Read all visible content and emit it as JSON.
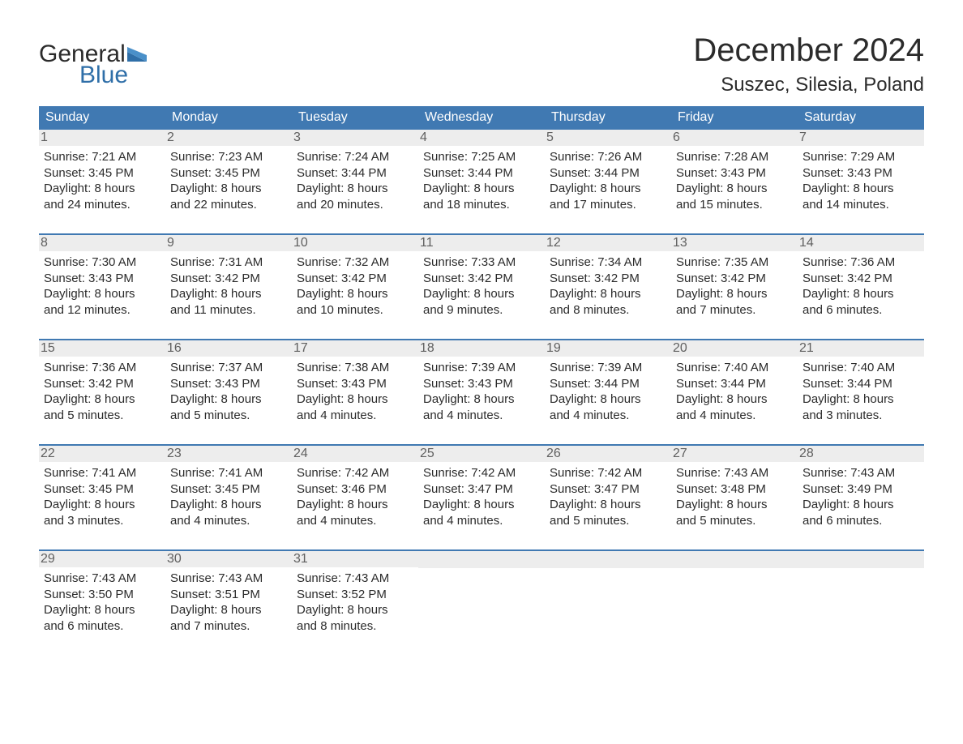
{
  "brand": {
    "top": "General",
    "bottom": "Blue",
    "color_accent": "#2f6fa8"
  },
  "title": "December 2024",
  "location": "Suszec, Silesia, Poland",
  "colors": {
    "header_bg": "#4079b2",
    "header_fg": "#ffffff",
    "week_border": "#4079b2",
    "daynum_band_bg": "#ededed",
    "daynum_fg": "#606060",
    "body_text": "#2b2b2b",
    "page_bg": "#ffffff"
  },
  "typography": {
    "title_fontsize": 40,
    "location_fontsize": 24,
    "dow_fontsize": 16,
    "daynum_fontsize": 16,
    "body_fontsize": 15
  },
  "dow": [
    "Sunday",
    "Monday",
    "Tuesday",
    "Wednesday",
    "Thursday",
    "Friday",
    "Saturday"
  ],
  "weeks": [
    [
      {
        "n": "1",
        "sunrise": "Sunrise: 7:21 AM",
        "sunset": "Sunset: 3:45 PM",
        "d1": "Daylight: 8 hours",
        "d2": "and 24 minutes."
      },
      {
        "n": "2",
        "sunrise": "Sunrise: 7:23 AM",
        "sunset": "Sunset: 3:45 PM",
        "d1": "Daylight: 8 hours",
        "d2": "and 22 minutes."
      },
      {
        "n": "3",
        "sunrise": "Sunrise: 7:24 AM",
        "sunset": "Sunset: 3:44 PM",
        "d1": "Daylight: 8 hours",
        "d2": "and 20 minutes."
      },
      {
        "n": "4",
        "sunrise": "Sunrise: 7:25 AM",
        "sunset": "Sunset: 3:44 PM",
        "d1": "Daylight: 8 hours",
        "d2": "and 18 minutes."
      },
      {
        "n": "5",
        "sunrise": "Sunrise: 7:26 AM",
        "sunset": "Sunset: 3:44 PM",
        "d1": "Daylight: 8 hours",
        "d2": "and 17 minutes."
      },
      {
        "n": "6",
        "sunrise": "Sunrise: 7:28 AM",
        "sunset": "Sunset: 3:43 PM",
        "d1": "Daylight: 8 hours",
        "d2": "and 15 minutes."
      },
      {
        "n": "7",
        "sunrise": "Sunrise: 7:29 AM",
        "sunset": "Sunset: 3:43 PM",
        "d1": "Daylight: 8 hours",
        "d2": "and 14 minutes."
      }
    ],
    [
      {
        "n": "8",
        "sunrise": "Sunrise: 7:30 AM",
        "sunset": "Sunset: 3:43 PM",
        "d1": "Daylight: 8 hours",
        "d2": "and 12 minutes."
      },
      {
        "n": "9",
        "sunrise": "Sunrise: 7:31 AM",
        "sunset": "Sunset: 3:42 PM",
        "d1": "Daylight: 8 hours",
        "d2": "and 11 minutes."
      },
      {
        "n": "10",
        "sunrise": "Sunrise: 7:32 AM",
        "sunset": "Sunset: 3:42 PM",
        "d1": "Daylight: 8 hours",
        "d2": "and 10 minutes."
      },
      {
        "n": "11",
        "sunrise": "Sunrise: 7:33 AM",
        "sunset": "Sunset: 3:42 PM",
        "d1": "Daylight: 8 hours",
        "d2": "and 9 minutes."
      },
      {
        "n": "12",
        "sunrise": "Sunrise: 7:34 AM",
        "sunset": "Sunset: 3:42 PM",
        "d1": "Daylight: 8 hours",
        "d2": "and 8 minutes."
      },
      {
        "n": "13",
        "sunrise": "Sunrise: 7:35 AM",
        "sunset": "Sunset: 3:42 PM",
        "d1": "Daylight: 8 hours",
        "d2": "and 7 minutes."
      },
      {
        "n": "14",
        "sunrise": "Sunrise: 7:36 AM",
        "sunset": "Sunset: 3:42 PM",
        "d1": "Daylight: 8 hours",
        "d2": "and 6 minutes."
      }
    ],
    [
      {
        "n": "15",
        "sunrise": "Sunrise: 7:36 AM",
        "sunset": "Sunset: 3:42 PM",
        "d1": "Daylight: 8 hours",
        "d2": "and 5 minutes."
      },
      {
        "n": "16",
        "sunrise": "Sunrise: 7:37 AM",
        "sunset": "Sunset: 3:43 PM",
        "d1": "Daylight: 8 hours",
        "d2": "and 5 minutes."
      },
      {
        "n": "17",
        "sunrise": "Sunrise: 7:38 AM",
        "sunset": "Sunset: 3:43 PM",
        "d1": "Daylight: 8 hours",
        "d2": "and 4 minutes."
      },
      {
        "n": "18",
        "sunrise": "Sunrise: 7:39 AM",
        "sunset": "Sunset: 3:43 PM",
        "d1": "Daylight: 8 hours",
        "d2": "and 4 minutes."
      },
      {
        "n": "19",
        "sunrise": "Sunrise: 7:39 AM",
        "sunset": "Sunset: 3:44 PM",
        "d1": "Daylight: 8 hours",
        "d2": "and 4 minutes."
      },
      {
        "n": "20",
        "sunrise": "Sunrise: 7:40 AM",
        "sunset": "Sunset: 3:44 PM",
        "d1": "Daylight: 8 hours",
        "d2": "and 4 minutes."
      },
      {
        "n": "21",
        "sunrise": "Sunrise: 7:40 AM",
        "sunset": "Sunset: 3:44 PM",
        "d1": "Daylight: 8 hours",
        "d2": "and 3 minutes."
      }
    ],
    [
      {
        "n": "22",
        "sunrise": "Sunrise: 7:41 AM",
        "sunset": "Sunset: 3:45 PM",
        "d1": "Daylight: 8 hours",
        "d2": "and 3 minutes."
      },
      {
        "n": "23",
        "sunrise": "Sunrise: 7:41 AM",
        "sunset": "Sunset: 3:45 PM",
        "d1": "Daylight: 8 hours",
        "d2": "and 4 minutes."
      },
      {
        "n": "24",
        "sunrise": "Sunrise: 7:42 AM",
        "sunset": "Sunset: 3:46 PM",
        "d1": "Daylight: 8 hours",
        "d2": "and 4 minutes."
      },
      {
        "n": "25",
        "sunrise": "Sunrise: 7:42 AM",
        "sunset": "Sunset: 3:47 PM",
        "d1": "Daylight: 8 hours",
        "d2": "and 4 minutes."
      },
      {
        "n": "26",
        "sunrise": "Sunrise: 7:42 AM",
        "sunset": "Sunset: 3:47 PM",
        "d1": "Daylight: 8 hours",
        "d2": "and 5 minutes."
      },
      {
        "n": "27",
        "sunrise": "Sunrise: 7:43 AM",
        "sunset": "Sunset: 3:48 PM",
        "d1": "Daylight: 8 hours",
        "d2": "and 5 minutes."
      },
      {
        "n": "28",
        "sunrise": "Sunrise: 7:43 AM",
        "sunset": "Sunset: 3:49 PM",
        "d1": "Daylight: 8 hours",
        "d2": "and 6 minutes."
      }
    ],
    [
      {
        "n": "29",
        "sunrise": "Sunrise: 7:43 AM",
        "sunset": "Sunset: 3:50 PM",
        "d1": "Daylight: 8 hours",
        "d2": "and 6 minutes."
      },
      {
        "n": "30",
        "sunrise": "Sunrise: 7:43 AM",
        "sunset": "Sunset: 3:51 PM",
        "d1": "Daylight: 8 hours",
        "d2": "and 7 minutes."
      },
      {
        "n": "31",
        "sunrise": "Sunrise: 7:43 AM",
        "sunset": "Sunset: 3:52 PM",
        "d1": "Daylight: 8 hours",
        "d2": "and 8 minutes."
      },
      null,
      null,
      null,
      null
    ]
  ]
}
